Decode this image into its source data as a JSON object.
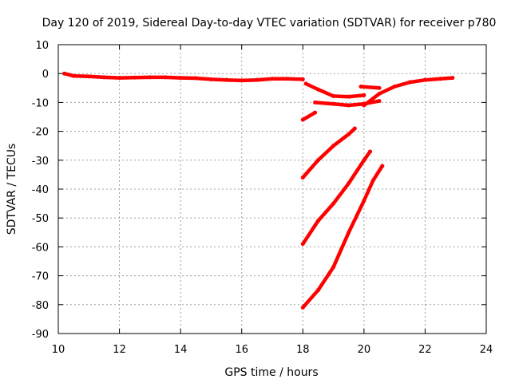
{
  "chart_data": {
    "type": "line",
    "title": "Day 120 of 2019, Sidereal Day-to-day VTEC variation (SDTVAR) for receiver p780",
    "xlabel": "GPS time / hours",
    "ylabel": "SDTVAR / TECUs",
    "xlim": [
      10,
      24
    ],
    "ylim": [
      -90,
      10
    ],
    "xticks": [
      10,
      12,
      14,
      16,
      18,
      20,
      22,
      24
    ],
    "yticks": [
      10,
      0,
      -10,
      -20,
      -30,
      -40,
      -50,
      -60,
      -70,
      -80,
      -90
    ],
    "grid": true,
    "legend": "none",
    "color": "#ff0000",
    "series": [
      {
        "x": [
          10.2,
          10.5,
          11.0,
          11.5,
          12.0,
          12.5,
          13.0,
          13.5,
          14.0,
          14.5,
          15.0,
          15.5,
          16.0,
          16.5,
          17.0,
          17.5,
          18.0
        ],
        "y": [
          0.0,
          -0.8,
          -1.0,
          -1.3,
          -1.5,
          -1.4,
          -1.3,
          -1.3,
          -1.5,
          -1.6,
          -2.0,
          -2.2,
          -2.4,
          -2.2,
          -1.8,
          -1.8,
          -2.0
        ]
      },
      {
        "x": [
          18.1,
          18.5,
          19.0,
          19.5,
          20.0
        ],
        "y": [
          -3.5,
          -5.5,
          -7.8,
          -8.0,
          -7.5
        ]
      },
      {
        "x": [
          18.4,
          19.0,
          19.5,
          20.0,
          20.5
        ],
        "y": [
          -10.0,
          -10.5,
          -11.0,
          -10.5,
          -9.5
        ]
      },
      {
        "x": [
          20.0,
          20.5,
          21.0,
          21.5,
          22.0,
          22.5,
          22.9
        ],
        "y": [
          -11.0,
          -7.0,
          -4.5,
          -3.0,
          -2.2,
          -1.8,
          -1.5
        ]
      },
      {
        "x": [
          19.9,
          20.5
        ],
        "y": [
          -4.5,
          -5.0
        ]
      },
      {
        "x": [
          18.0,
          18.4
        ],
        "y": [
          -16.0,
          -13.5
        ]
      },
      {
        "x": [
          18.0,
          18.5,
          19.0,
          19.5,
          19.7
        ],
        "y": [
          -36.0,
          -30.0,
          -25.0,
          -21.0,
          -19.0
        ]
      },
      {
        "x": [
          18.0,
          18.5,
          19.0,
          19.5,
          20.0,
          20.2
        ],
        "y": [
          -59.0,
          -51.0,
          -45.0,
          -38.0,
          -30.0,
          -27.0
        ]
      },
      {
        "x": [
          18.0,
          18.5,
          19.0,
          19.5,
          20.0,
          20.3,
          20.6
        ],
        "y": [
          -81.0,
          -75.0,
          -67.0,
          -55.0,
          -44.0,
          -37.0,
          -32.0
        ]
      }
    ]
  }
}
